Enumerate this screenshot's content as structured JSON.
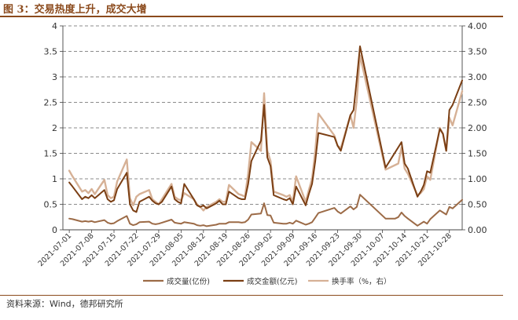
{
  "figure": {
    "title": "图 3：交易热度上升，成交大增",
    "source": "资料来源：Wind，德邦研究所"
  },
  "colors": {
    "volume": "#9c6b47",
    "amount": "#7b3f14",
    "turnover": "#d6b196",
    "grid": "#666666",
    "title": "#8b4a1c"
  },
  "chart_data": {
    "type": "line",
    "title": "图 3：交易热度上升，成交大增",
    "ylim": [
      0,
      4
    ],
    "y2lim": [
      0,
      4
    ],
    "yticks": [
      "0",
      "0.5",
      "1",
      "1.5",
      "2",
      "2.5",
      "3",
      "3.5",
      "4"
    ],
    "y2ticks": [
      "0.00",
      "0.50",
      "1.00",
      "1.50",
      "2.00",
      "2.50",
      "3.00",
      "3.50",
      "4.00"
    ],
    "grid": true,
    "legend_position": "bottom",
    "xticks": [
      "2021-07-01",
      "2021-07-08",
      "2021-07-15",
      "2021-07-22",
      "2021-07-29",
      "2021-08-05",
      "2021-08-12",
      "2021-08-19",
      "2021-08-26",
      "2021-09-02",
      "2021-09-09",
      "2021-09-16",
      "2021-09-23",
      "2021-09-30",
      "2021-10-07",
      "2021-10-14",
      "2021-10-21",
      "2021-10-28"
    ],
    "series": [
      {
        "name": "成交量(亿份)",
        "axis": "left",
        "points": [
          [
            "2021-07-01",
            0.22
          ],
          [
            "2021-07-02",
            0.21
          ],
          [
            "2021-07-05",
            0.16
          ],
          [
            "2021-07-06",
            0.17
          ],
          [
            "2021-07-07",
            0.16
          ],
          [
            "2021-07-08",
            0.17
          ],
          [
            "2021-07-09",
            0.15
          ],
          [
            "2021-07-12",
            0.19
          ],
          [
            "2021-07-13",
            0.14
          ],
          [
            "2021-07-14",
            0.12
          ],
          [
            "2021-07-15",
            0.13
          ],
          [
            "2021-07-16",
            0.17
          ],
          [
            "2021-07-19",
            0.27
          ],
          [
            "2021-07-20",
            0.12
          ],
          [
            "2021-07-21",
            0.09
          ],
          [
            "2021-07-22",
            0.11
          ],
          [
            "2021-07-23",
            0.15
          ],
          [
            "2021-07-26",
            0.16
          ],
          [
            "2021-07-27",
            0.12
          ],
          [
            "2021-07-28",
            0.11
          ],
          [
            "2021-07-29",
            0.12
          ],
          [
            "2021-07-30",
            0.14
          ],
          [
            "2021-08-02",
            0.2
          ],
          [
            "2021-08-03",
            0.14
          ],
          [
            "2021-08-04",
            0.13
          ],
          [
            "2021-08-05",
            0.12
          ],
          [
            "2021-08-06",
            0.15
          ],
          [
            "2021-08-09",
            0.12
          ],
          [
            "2021-08-10",
            0.09
          ],
          [
            "2021-08-11",
            0.08
          ],
          [
            "2021-08-12",
            0.09
          ],
          [
            "2021-08-13",
            0.07
          ],
          [
            "2021-08-16",
            0.1
          ],
          [
            "2021-08-17",
            0.12
          ],
          [
            "2021-08-18",
            0.12
          ],
          [
            "2021-08-19",
            0.12
          ],
          [
            "2021-08-20",
            0.15
          ],
          [
            "2021-08-23",
            0.15
          ],
          [
            "2021-08-24",
            0.14
          ],
          [
            "2021-08-25",
            0.15
          ],
          [
            "2021-08-26",
            0.2
          ],
          [
            "2021-08-27",
            0.3
          ],
          [
            "2021-08-30",
            0.32
          ],
          [
            "2021-08-31",
            0.52
          ],
          [
            "2021-09-01",
            0.29
          ],
          [
            "2021-09-02",
            0.28
          ],
          [
            "2021-09-03",
            0.14
          ],
          [
            "2021-09-06",
            0.12
          ],
          [
            "2021-09-07",
            0.12
          ],
          [
            "2021-09-08",
            0.14
          ],
          [
            "2021-09-09",
            0.12
          ],
          [
            "2021-09-10",
            0.18
          ],
          [
            "2021-09-13",
            0.1
          ],
          [
            "2021-09-14",
            0.12
          ],
          [
            "2021-09-15",
            0.15
          ],
          [
            "2021-09-16",
            0.24
          ],
          [
            "2021-09-17",
            0.33
          ],
          [
            "2021-09-22",
            0.43
          ],
          [
            "2021-09-23",
            0.36
          ],
          [
            "2021-09-24",
            0.32
          ],
          [
            "2021-09-27",
            0.46
          ],
          [
            "2021-09-28",
            0.4
          ],
          [
            "2021-09-29",
            0.45
          ],
          [
            "2021-09-30",
            0.69
          ],
          [
            "2021-10-08",
            0.22
          ],
          [
            "2021-10-11",
            0.22
          ],
          [
            "2021-10-12",
            0.25
          ],
          [
            "2021-10-13",
            0.34
          ],
          [
            "2021-10-14",
            0.27
          ],
          [
            "2021-10-15",
            0.22
          ],
          [
            "2021-10-18",
            0.08
          ],
          [
            "2021-10-19",
            0.12
          ],
          [
            "2021-10-20",
            0.16
          ],
          [
            "2021-10-21",
            0.12
          ],
          [
            "2021-10-22",
            0.21
          ],
          [
            "2021-10-25",
            0.38
          ],
          [
            "2021-10-26",
            0.34
          ],
          [
            "2021-10-27",
            0.3
          ],
          [
            "2021-10-28",
            0.45
          ],
          [
            "2021-10-29",
            0.42
          ],
          [
            "2021-11-01",
            0.59
          ]
        ]
      },
      {
        "name": "成交金额(亿元)",
        "axis": "left",
        "points": [
          [
            "2021-07-01",
            0.93
          ],
          [
            "2021-07-02",
            0.85
          ],
          [
            "2021-07-05",
            0.6
          ],
          [
            "2021-07-06",
            0.65
          ],
          [
            "2021-07-07",
            0.62
          ],
          [
            "2021-07-08",
            0.68
          ],
          [
            "2021-07-09",
            0.62
          ],
          [
            "2021-07-12",
            0.78
          ],
          [
            "2021-07-13",
            0.6
          ],
          [
            "2021-07-14",
            0.55
          ],
          [
            "2021-07-15",
            0.58
          ],
          [
            "2021-07-16",
            0.8
          ],
          [
            "2021-07-19",
            1.12
          ],
          [
            "2021-07-20",
            0.5
          ],
          [
            "2021-07-21",
            0.38
          ],
          [
            "2021-07-22",
            0.35
          ],
          [
            "2021-07-23",
            0.55
          ],
          [
            "2021-07-26",
            0.65
          ],
          [
            "2021-07-27",
            0.57
          ],
          [
            "2021-07-28",
            0.52
          ],
          [
            "2021-07-29",
            0.5
          ],
          [
            "2021-07-30",
            0.55
          ],
          [
            "2021-08-02",
            0.85
          ],
          [
            "2021-08-03",
            0.6
          ],
          [
            "2021-08-04",
            0.55
          ],
          [
            "2021-08-05",
            0.52
          ],
          [
            "2021-08-06",
            0.9
          ],
          [
            "2021-08-09",
            0.6
          ],
          [
            "2021-08-10",
            0.48
          ],
          [
            "2021-08-11",
            0.45
          ],
          [
            "2021-08-12",
            0.48
          ],
          [
            "2021-08-13",
            0.42
          ],
          [
            "2021-08-16",
            0.52
          ],
          [
            "2021-08-17",
            0.57
          ],
          [
            "2021-08-18",
            0.5
          ],
          [
            "2021-08-19",
            0.5
          ],
          [
            "2021-08-20",
            0.75
          ],
          [
            "2021-08-23",
            0.62
          ],
          [
            "2021-08-24",
            0.6
          ],
          [
            "2021-08-25",
            0.6
          ],
          [
            "2021-08-26",
            0.9
          ],
          [
            "2021-08-27",
            1.35
          ],
          [
            "2021-08-30",
            1.75
          ],
          [
            "2021-08-31",
            2.45
          ],
          [
            "2021-09-01",
            1.42
          ],
          [
            "2021-09-02",
            1.25
          ],
          [
            "2021-09-03",
            0.68
          ],
          [
            "2021-09-06",
            0.6
          ],
          [
            "2021-09-07",
            0.58
          ],
          [
            "2021-09-08",
            0.62
          ],
          [
            "2021-09-09",
            0.5
          ],
          [
            "2021-09-10",
            0.85
          ],
          [
            "2021-09-13",
            0.48
          ],
          [
            "2021-09-14",
            0.7
          ],
          [
            "2021-09-15",
            0.9
          ],
          [
            "2021-09-16",
            1.35
          ],
          [
            "2021-09-17",
            1.9
          ],
          [
            "2021-09-22",
            1.82
          ],
          [
            "2021-09-23",
            1.65
          ],
          [
            "2021-09-24",
            1.55
          ],
          [
            "2021-09-27",
            2.25
          ],
          [
            "2021-09-28",
            2.35
          ],
          [
            "2021-09-29",
            2.95
          ],
          [
            "2021-09-30",
            3.6
          ],
          [
            "2021-10-08",
            1.22
          ],
          [
            "2021-10-13",
            1.72
          ],
          [
            "2021-10-14",
            1.3
          ],
          [
            "2021-10-15",
            1.2
          ],
          [
            "2021-10-18",
            0.65
          ],
          [
            "2021-10-19",
            0.75
          ],
          [
            "2021-10-20",
            0.88
          ],
          [
            "2021-10-21",
            1.15
          ],
          [
            "2021-10-22",
            1.12
          ],
          [
            "2021-10-25",
            1.98
          ],
          [
            "2021-10-26",
            1.88
          ],
          [
            "2021-10-27",
            1.55
          ],
          [
            "2021-10-28",
            2.35
          ],
          [
            "2021-10-29",
            2.45
          ],
          [
            "2021-11-01",
            2.93
          ]
        ]
      },
      {
        "name": "换手率（%，右）",
        "axis": "right",
        "points": [
          [
            "2021-07-01",
            1.16
          ],
          [
            "2021-07-02",
            1.05
          ],
          [
            "2021-07-05",
            0.75
          ],
          [
            "2021-07-06",
            0.78
          ],
          [
            "2021-07-07",
            0.72
          ],
          [
            "2021-07-08",
            0.8
          ],
          [
            "2021-07-09",
            0.7
          ],
          [
            "2021-07-12",
            0.98
          ],
          [
            "2021-07-13",
            0.68
          ],
          [
            "2021-07-14",
            0.62
          ],
          [
            "2021-07-15",
            0.65
          ],
          [
            "2021-07-16",
            0.95
          ],
          [
            "2021-07-19",
            1.38
          ],
          [
            "2021-07-20",
            0.62
          ],
          [
            "2021-07-21",
            0.48
          ],
          [
            "2021-07-22",
            0.65
          ],
          [
            "2021-07-23",
            0.7
          ],
          [
            "2021-07-26",
            0.78
          ],
          [
            "2021-07-27",
            0.6
          ],
          [
            "2021-07-28",
            0.55
          ],
          [
            "2021-07-29",
            0.5
          ],
          [
            "2021-07-30",
            0.6
          ],
          [
            "2021-08-02",
            0.9
          ],
          [
            "2021-08-03",
            0.65
          ],
          [
            "2021-08-04",
            0.6
          ],
          [
            "2021-08-05",
            0.58
          ],
          [
            "2021-08-06",
            0.72
          ],
          [
            "2021-08-09",
            0.6
          ],
          [
            "2021-08-10",
            0.5
          ],
          [
            "2021-08-11",
            0.45
          ],
          [
            "2021-08-12",
            0.38
          ],
          [
            "2021-08-13",
            0.45
          ],
          [
            "2021-08-16",
            0.55
          ],
          [
            "2021-08-17",
            0.6
          ],
          [
            "2021-08-18",
            0.55
          ],
          [
            "2021-08-19",
            0.55
          ],
          [
            "2021-08-20",
            0.88
          ],
          [
            "2021-08-23",
            0.7
          ],
          [
            "2021-08-24",
            0.68
          ],
          [
            "2021-08-25",
            0.65
          ],
          [
            "2021-08-26",
            1.1
          ],
          [
            "2021-08-27",
            1.72
          ],
          [
            "2021-08-30",
            1.55
          ],
          [
            "2021-08-31",
            2.68
          ],
          [
            "2021-09-01",
            1.55
          ],
          [
            "2021-09-02",
            1.35
          ],
          [
            "2021-09-03",
            0.75
          ],
          [
            "2021-09-06",
            0.68
          ],
          [
            "2021-09-07",
            0.65
          ],
          [
            "2021-09-08",
            0.68
          ],
          [
            "2021-09-09",
            0.55
          ],
          [
            "2021-09-10",
            1.05
          ],
          [
            "2021-09-13",
            0.55
          ],
          [
            "2021-09-14",
            0.78
          ],
          [
            "2021-09-15",
            1.0
          ],
          [
            "2021-09-16",
            1.55
          ],
          [
            "2021-09-17",
            2.28
          ],
          [
            "2021-09-22",
            1.85
          ],
          [
            "2021-09-23",
            1.65
          ],
          [
            "2021-09-24",
            1.6
          ],
          [
            "2021-09-27",
            2.25
          ],
          [
            "2021-09-28",
            2.0
          ],
          [
            "2021-09-29",
            2.55
          ],
          [
            "2021-09-30",
            3.42
          ],
          [
            "2021-10-08",
            1.18
          ],
          [
            "2021-10-12",
            1.3
          ],
          [
            "2021-10-13",
            1.62
          ],
          [
            "2021-10-14",
            1.2
          ],
          [
            "2021-10-15",
            1.1
          ],
          [
            "2021-10-18",
            0.68
          ],
          [
            "2021-10-19",
            0.72
          ],
          [
            "2021-10-20",
            0.8
          ],
          [
            "2021-10-21",
            1.05
          ],
          [
            "2021-10-22",
            0.98
          ],
          [
            "2021-10-25",
            2.0
          ],
          [
            "2021-10-26",
            1.88
          ],
          [
            "2021-10-27",
            1.55
          ],
          [
            "2021-10-28",
            2.2
          ],
          [
            "2021-10-29",
            2.05
          ],
          [
            "2021-11-01",
            2.72
          ]
        ]
      }
    ]
  }
}
